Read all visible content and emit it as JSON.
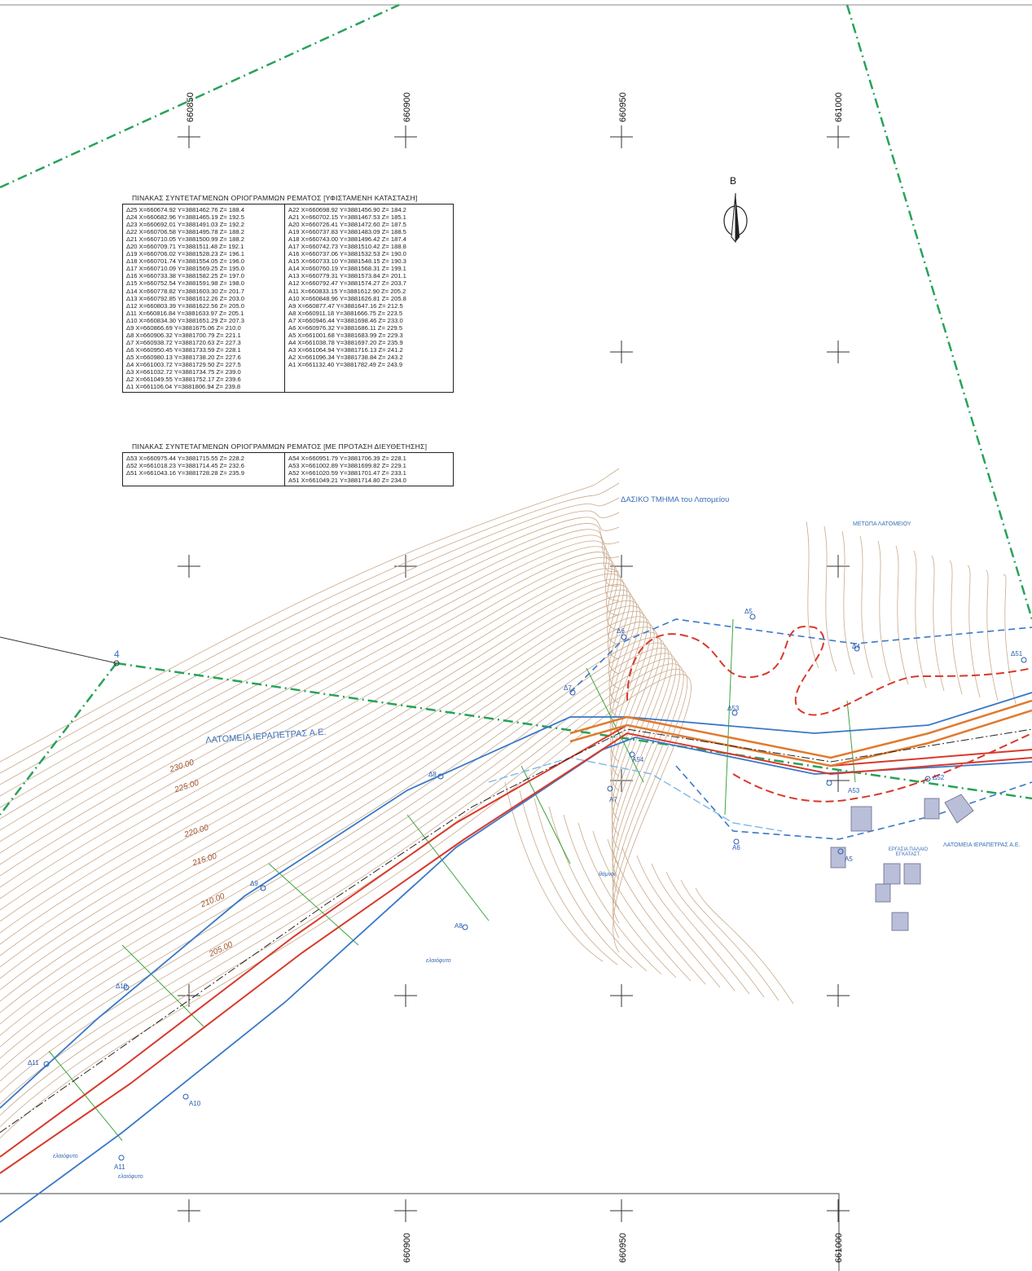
{
  "colors": {
    "boundary": "#27a35a",
    "existing_bank": "#3a78c8",
    "proposed_bank": "#d8392b",
    "contour": "#c9a98a",
    "channel": "#e07a2e",
    "cross_section": "#3aa53a"
  },
  "grid_labels_top": [
    "660850",
    "660900",
    "660950",
    "661000"
  ],
  "grid_labels_bottom": [
    "660900",
    "660950",
    "661000"
  ],
  "north_arrow": {
    "label": "B",
    "icon": "north-arrow-icon"
  },
  "table_existing": {
    "title": "ΠΙΝΑΚΑΣ ΣΥΝΤΕΤΑΓΜΕΝΩΝ ΟΡΙΟΓΡΑΜΜΩΝ ΡΕΜΑΤΟΣ [ΥΦΙΣΤΑΜΕΝΗ ΚΑΤΑΣΤΑΣΗ]",
    "left_rows": [
      "Δ25 X=660674.92 Y=3881462.76 Z= 188.4",
      "Δ24 X=660682.96 Y=3881465.19 Z= 192.5",
      "Δ23 X=660692.01 Y=3881491.03 Z= 192.2",
      "Δ22 X=660706.58 Y=3881495.78 Z= 188.2",
      "Δ21 X=660710.05 Y=3881500.99 Z= 188.2",
      "Δ20 X=660709.71 Y=3881511.48 Z= 192.1",
      "Δ19 X=660706.02 Y=3881528.23 Z= 196.1",
      "Δ18 X=660701.74 Y=3881554.05 Z= 196.0",
      "Δ17 X=660710.09 Y=3881569.25 Z= 195.0",
      "Δ16 X=660733.38 Y=3881582.25 Z= 197.0",
      "Δ15 X=660752.54 Y=3881591.98 Z= 198.0",
      "Δ14 X=660778.82 Y=3881603.30 Z= 201.7",
      "Δ13 X=660792.85 Y=3881612.26 Z= 203.0",
      "Δ12 X=660803.39 Y=3881622.56 Z= 205.0",
      "Δ11 X=660816.84 Y=3881633.97 Z= 205.1",
      "Δ10 X=660834.30 Y=3881651.29 Z= 207.3",
      "Δ9  X=660866.69 Y=3881675.06 Z= 210.0",
      "Δ8  X=660906.32 Y=3881700.79 Z= 221.1",
      "Δ7  X=660938.72 Y=3881720.63 Z= 227.3",
      "Δ6  X=660950.45 Y=3881733.59 Z= 228.1",
      "Δ5  X=660980.13 Y=3881738.20 Z= 227.6",
      "Δ4  X=661003.72 Y=3881729.50 Z= 227.5",
      "Δ3  X=661032.72 Y=3881734.75 Z= 239.0",
      "Δ2  X=661049.55 Y=3881752.17 Z= 239.6",
      "Δ1  X=661106.04 Y=3881806.94 Z= 239.8"
    ],
    "right_rows": [
      "A22 X=660698.92 Y=3881456.90 Z= 184.2",
      "A21 X=660702.15 Y=3881467.53 Z= 185.1",
      "A20 X=660726.41 Y=3881472.60 Z= 187.5",
      "A19 X=660737.83 Y=3881483.09 Z= 188.5",
      "A18 X=660743.00 Y=3881496.42 Z= 187.4",
      "A17 X=660742.73 Y=3881510.42 Z= 188.8",
      "A16 X=660737.06 Y=3881532.53 Z= 190.0",
      "A15 X=660733.10 Y=3881548.15 Z= 190.3",
      "A14 X=660760.19 Y=3881568.31 Z= 199.1",
      "A13 X=660779.31 Y=3881573.84 Z= 201.1",
      "A12 X=660792.47 Y=3881574.27 Z= 203.7",
      "A11 X=660833.15 Y=3881612.90 Z= 205.2",
      "A10 X=660848.96 Y=3881626.81 Z= 205.8",
      "A9  X=660877.47 Y=3881647.16 Z= 212.5",
      "A8  X=660911.18 Y=3881666.75 Z= 223.5",
      "A7  X=660946.44 Y=3881698.46 Z= 233.0",
      "A6  X=660976.32 Y=3881686.11 Z= 229.5",
      "A5  X=661001.68 Y=3881683.99 Z= 229.3",
      "A4  X=661038.78 Y=3881697.20 Z= 235.9",
      "A3  X=661064.94 Y=3881716.13 Z= 241.2",
      "A2  X=661096.34 Y=3881738.84 Z= 243.2",
      "A1  X=661132.40 Y=3881782.49 Z= 243.9"
    ]
  },
  "table_proposed": {
    "title": "ΠΙΝΑΚΑΣ ΣΥΝΤΕΤΑΓΜΕΝΩΝ ΟΡΙΟΓΡΑΜΜΩΝ ΡΕΜΑΤΟΣ [ΜΕ ΠΡΟΤΑΣΗ ΔΙΕΥΘΕΤΗΣΗΣ]",
    "left_rows": [
      "Δ53 X=660975.44 Y=3881715.55 Z= 228.2",
      "Δ52 X=661018.23 Y=3881714.45 Z= 232.6",
      "Δ51 X=661043.16 Y=3881728.28 Z= 235.9"
    ],
    "right_rows": [
      "A54 X=660951.79 Y=3881706.39 Z= 228.1",
      "A53 X=661002.89 Y=3881699.82 Z= 229.1",
      "A52 X=661020.59 Y=3881701.47 Z= 233.1",
      "A51 X=661049.21 Y=3881714.80 Z= 234.0"
    ]
  },
  "area_labels": {
    "forest_section": "ΔΑΣΙΚΟ ΤΜΗΜΑ του Λατομείου",
    "quarry_front": "ΜΕΤΩΠΑ ΛΑΤΟΜΕΙΟΥ",
    "quarries_main": "ΛΑΤΟΜΕΙΑ ΙΕΡΑΠΕΤΡΑΣ Α.Ε.",
    "quarries_small": "ΛΑΤΟΜΕΙΑ ΙΕΡΑΠΕΤΡΑΣ Α.Ε.",
    "old_installations": "ΕΡΓΑΣΙΑ ΠΑΛΑΙΟ ΕΓΚΑΤΑΣΤ.",
    "olive_grove_1": "ελαιόφυτο",
    "olive_grove_2": "ελαιόφυτο",
    "olive_grove_3": "ελαιόφυτο",
    "shrubs": "θάμνοι",
    "boundary_point": "4"
  },
  "elevation_labels": [
    "230.00",
    "225.00",
    "220.00",
    "215.00",
    "210.00",
    "205.00"
  ],
  "point_labels": {
    "d4": "Δ4",
    "d5": "Δ5",
    "d6": "Δ6",
    "d7": "Δ7",
    "d8": "Δ8",
    "d9": "Δ9",
    "d10": "Δ10",
    "d11": "Δ11",
    "d51": "Δ51",
    "d52": "Δ52",
    "d53": "Δ53",
    "a5": "A5",
    "a6": "A6",
    "a7": "A7",
    "a8": "A8",
    "a10": "A10",
    "a11": "A11",
    "a53": "A53",
    "a54": "A54"
  }
}
